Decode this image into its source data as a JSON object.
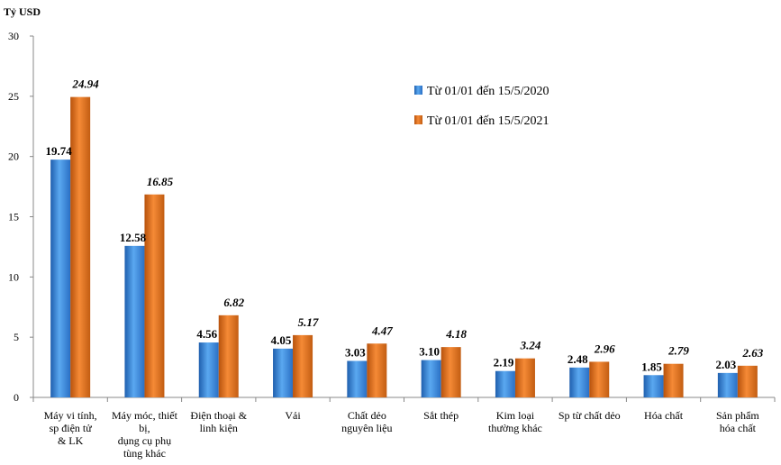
{
  "chart_data": {
    "type": "bar",
    "unit_label": "Tỷ USD",
    "ylim": [
      0,
      30
    ],
    "yticks": [
      "0",
      "5",
      "10",
      "15",
      "20",
      "25",
      "30"
    ],
    "grid": false,
    "legend_position": "top-right",
    "categories": [
      [
        "Máy vi tính,",
        "sp điện tử",
        "& LK"
      ],
      [
        "Máy móc, thiết",
        "bị,",
        "dụng cụ phụ",
        "tùng khác"
      ],
      [
        "Điện thoại &",
        "linh kiện"
      ],
      [
        "Vải"
      ],
      [
        "Chất dẻo",
        "nguyên liệu"
      ],
      [
        "Sắt thép"
      ],
      [
        "Kim loại",
        "thường khác"
      ],
      [
        "Sp từ chất dẻo"
      ],
      [
        "Hóa chất"
      ],
      [
        "Sản phẩm",
        "hóa chất"
      ]
    ],
    "series": [
      {
        "name": "Từ 01/01 đến 15/5/2020",
        "color": "#3d8fe0",
        "values": [
          19.74,
          12.58,
          4.56,
          4.05,
          3.03,
          3.1,
          2.19,
          2.48,
          1.85,
          2.03
        ],
        "labels": [
          "19.74",
          "12.58",
          "4.56",
          "4.05",
          "3.03",
          "3.10",
          "2.19",
          "2.48",
          "1.85",
          "2.03"
        ]
      },
      {
        "name": "Từ 01/01 đến 15/5/2021",
        "color": "#e0741f",
        "values": [
          24.94,
          16.85,
          6.82,
          5.17,
          4.47,
          4.18,
          3.24,
          2.96,
          2.79,
          2.63
        ],
        "labels": [
          "24.94",
          "16.85",
          "6.82",
          "5.17",
          "4.47",
          "4.18",
          "3.24",
          "2.96",
          "2.79",
          "2.63"
        ]
      }
    ]
  }
}
